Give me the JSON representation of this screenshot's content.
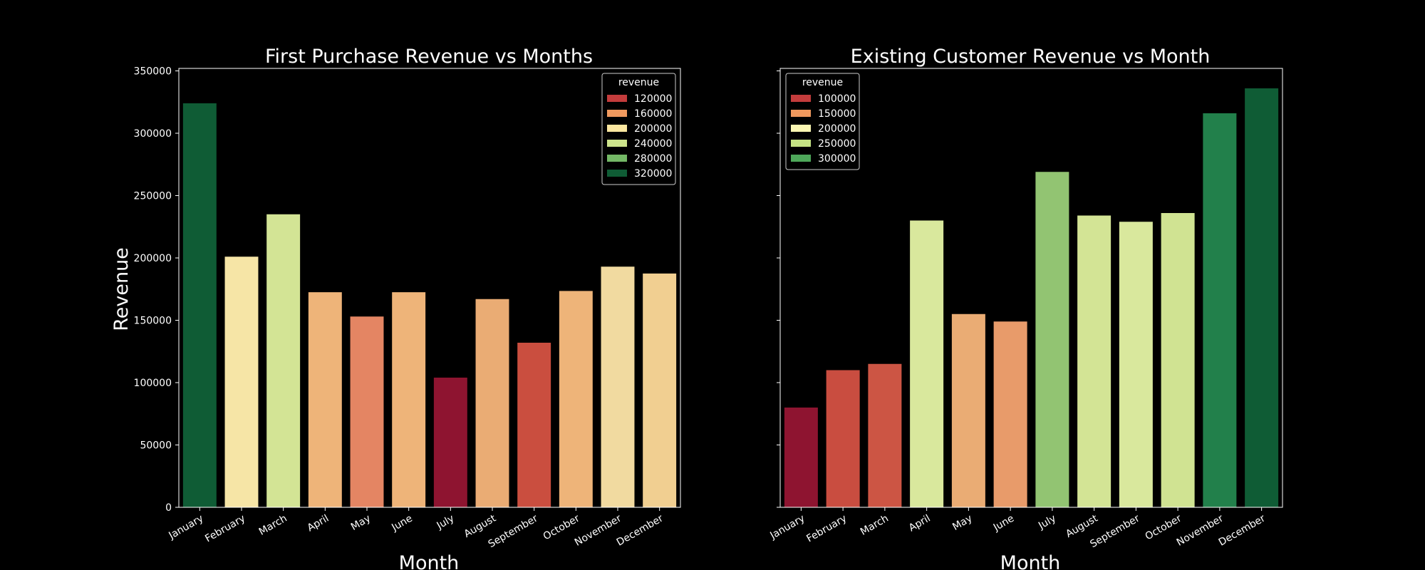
{
  "chart_data": [
    {
      "type": "bar",
      "title": "First Purchase Revenue vs Months",
      "xlabel": "Month",
      "ylabel": "Revenue",
      "ylim": [
        0,
        352000
      ],
      "yticks": [
        "0",
        "50000",
        "100000",
        "150000",
        "200000",
        "250000",
        "300000",
        "350000"
      ],
      "categories": [
        "January",
        "February",
        "March",
        "April",
        "May",
        "June",
        "July",
        "August",
        "September",
        "October",
        "November",
        "December"
      ],
      "values": [
        324000,
        201000,
        235000,
        172500,
        153000,
        172500,
        104000,
        167000,
        132000,
        173500,
        193000,
        187500
      ],
      "colors": [
        "#0f5c35",
        "#f6e5a6",
        "#d3e495",
        "#eeb479",
        "#e48563",
        "#eeb479",
        "#8e1430",
        "#eaac74",
        "#ca4e3f",
        "#eeb479",
        "#f1daa0",
        "#f1cf91"
      ],
      "grid": false,
      "legend": {
        "title": "revenue",
        "placement": "top-right",
        "entries": [
          {
            "label": "120000",
            "color": "#c43c3c"
          },
          {
            "label": "160000",
            "color": "#f0995e"
          },
          {
            "label": "200000",
            "color": "#fbe7a0"
          },
          {
            "label": "240000",
            "color": "#cde48c"
          },
          {
            "label": "280000",
            "color": "#74b866"
          },
          {
            "label": "320000",
            "color": "#0f5c35"
          }
        ]
      }
    },
    {
      "type": "bar",
      "title": "Existing Customer Revenue vs Month",
      "xlabel": "Month",
      "ylabel": "",
      "ylim": [
        0,
        352000
      ],
      "yticks": [],
      "categories": [
        "January",
        "February",
        "March",
        "April",
        "May",
        "June",
        "July",
        "August",
        "September",
        "October",
        "November",
        "December"
      ],
      "values": [
        80000,
        110000,
        115000,
        230000,
        155000,
        149000,
        269000,
        234000,
        229000,
        236000,
        316000,
        336000
      ],
      "colors": [
        "#8e1430",
        "#c94d40",
        "#cc5544",
        "#d9e89d",
        "#eaac74",
        "#e89b6a",
        "#92c472",
        "#d3e495",
        "#d9e89d",
        "#d0e392",
        "#22804b",
        "#0f5c35"
      ],
      "grid": false,
      "legend": {
        "title": "revenue",
        "placement": "top-left",
        "entries": [
          {
            "label": "100000",
            "color": "#c43c3c"
          },
          {
            "label": "150000",
            "color": "#f0995e"
          },
          {
            "label": "200000",
            "color": "#fbf7b2"
          },
          {
            "label": "250000",
            "color": "#c5e384"
          },
          {
            "label": "300000",
            "color": "#4ea85a"
          }
        ]
      }
    }
  ]
}
